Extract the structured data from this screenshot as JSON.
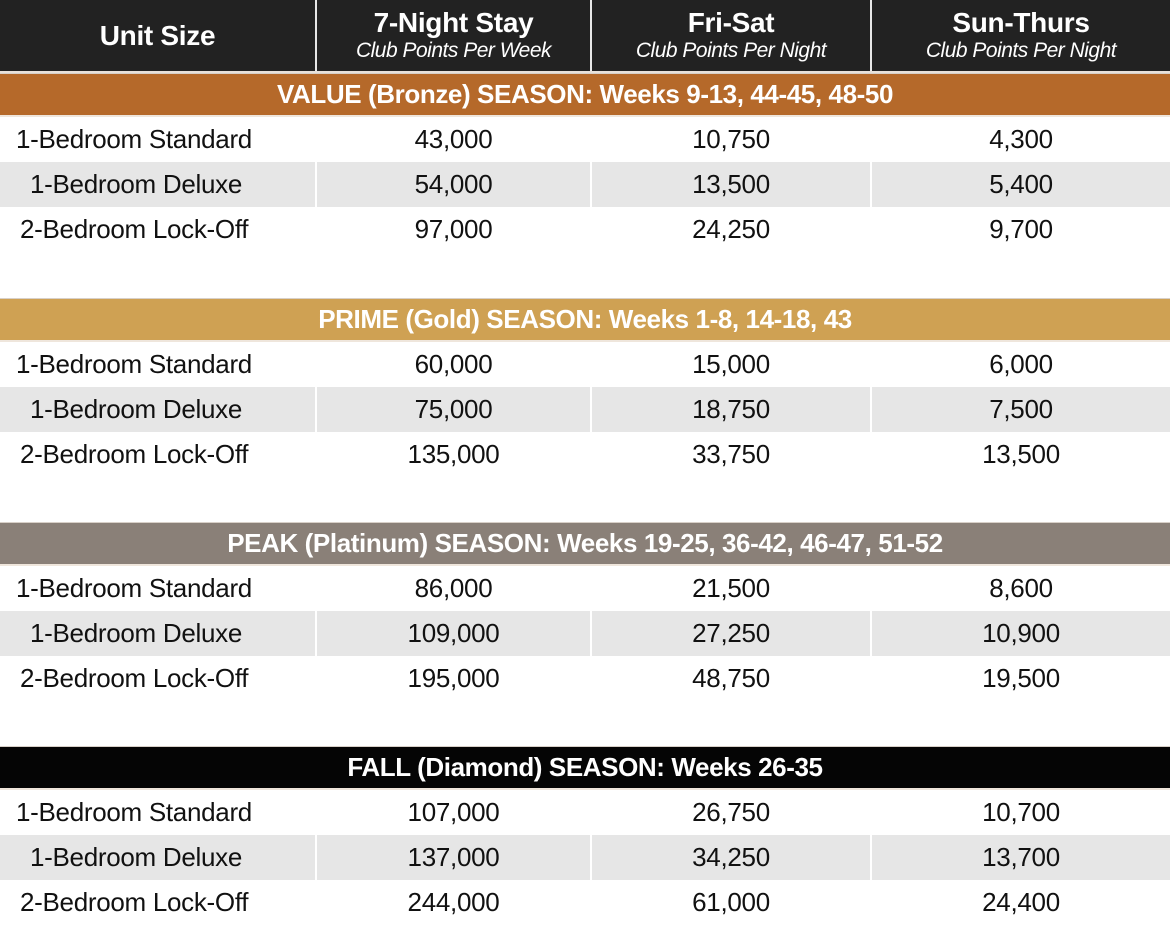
{
  "header": {
    "col0": {
      "title": "Unit Size"
    },
    "col1": {
      "title": "7-Night Stay",
      "subtitle": "Club Points Per Week"
    },
    "col2": {
      "title": "Fri-Sat",
      "subtitle": "Club Points Per Night"
    },
    "col3": {
      "title": "Sun-Thurs",
      "subtitle": "Club Points Per Night"
    }
  },
  "colors": {
    "header_bg": "#222222",
    "value_bronze": "#b5692a",
    "prime_gold": "#cfa153",
    "peak_platinum": "#8a8078",
    "fall_diamond": "#050505",
    "alt_row": "#e6e6e6"
  },
  "seasons": [
    {
      "label": "VALUE (Bronze) SEASON: Weeks 9-13, 44-45, 48-50",
      "rows": [
        {
          "unit": "1-Bedroom Standard",
          "week": "43,000",
          "frisat": "10,750",
          "sunthu": "4,300"
        },
        {
          "unit": "1-Bedroom Deluxe",
          "week": "54,000",
          "frisat": "13,500",
          "sunthu": "5,400"
        },
        {
          "unit": "2-Bedroom Lock-Off",
          "week": "97,000",
          "frisat": "24,250",
          "sunthu": "9,700"
        }
      ]
    },
    {
      "label": "PRIME (Gold) SEASON: Weeks 1-8, 14-18, 43",
      "rows": [
        {
          "unit": "1-Bedroom Standard",
          "week": "60,000",
          "frisat": "15,000",
          "sunthu": "6,000"
        },
        {
          "unit": "1-Bedroom Deluxe",
          "week": "75,000",
          "frisat": "18,750",
          "sunthu": "7,500"
        },
        {
          "unit": "2-Bedroom Lock-Off",
          "week": "135,000",
          "frisat": "33,750",
          "sunthu": "13,500"
        }
      ]
    },
    {
      "label": "PEAK (Platinum) SEASON: Weeks 19-25, 36-42, 46-47, 51-52",
      "rows": [
        {
          "unit": "1-Bedroom Standard",
          "week": "86,000",
          "frisat": "21,500",
          "sunthu": "8,600"
        },
        {
          "unit": "1-Bedroom Deluxe",
          "week": "109,000",
          "frisat": "27,250",
          "sunthu": "10,900"
        },
        {
          "unit": "2-Bedroom Lock-Off",
          "week": "195,000",
          "frisat": "48,750",
          "sunthu": "19,500"
        }
      ]
    },
    {
      "label": "FALL (Diamond) SEASON: Weeks 26-35",
      "rows": [
        {
          "unit": "1-Bedroom Standard",
          "week": "107,000",
          "frisat": "26,750",
          "sunthu": "10,700"
        },
        {
          "unit": "1-Bedroom Deluxe",
          "week": "137,000",
          "frisat": "34,250",
          "sunthu": "13,700"
        },
        {
          "unit": "2-Bedroom Lock-Off",
          "week": "244,000",
          "frisat": "61,000",
          "sunthu": "24,400"
        }
      ]
    }
  ]
}
